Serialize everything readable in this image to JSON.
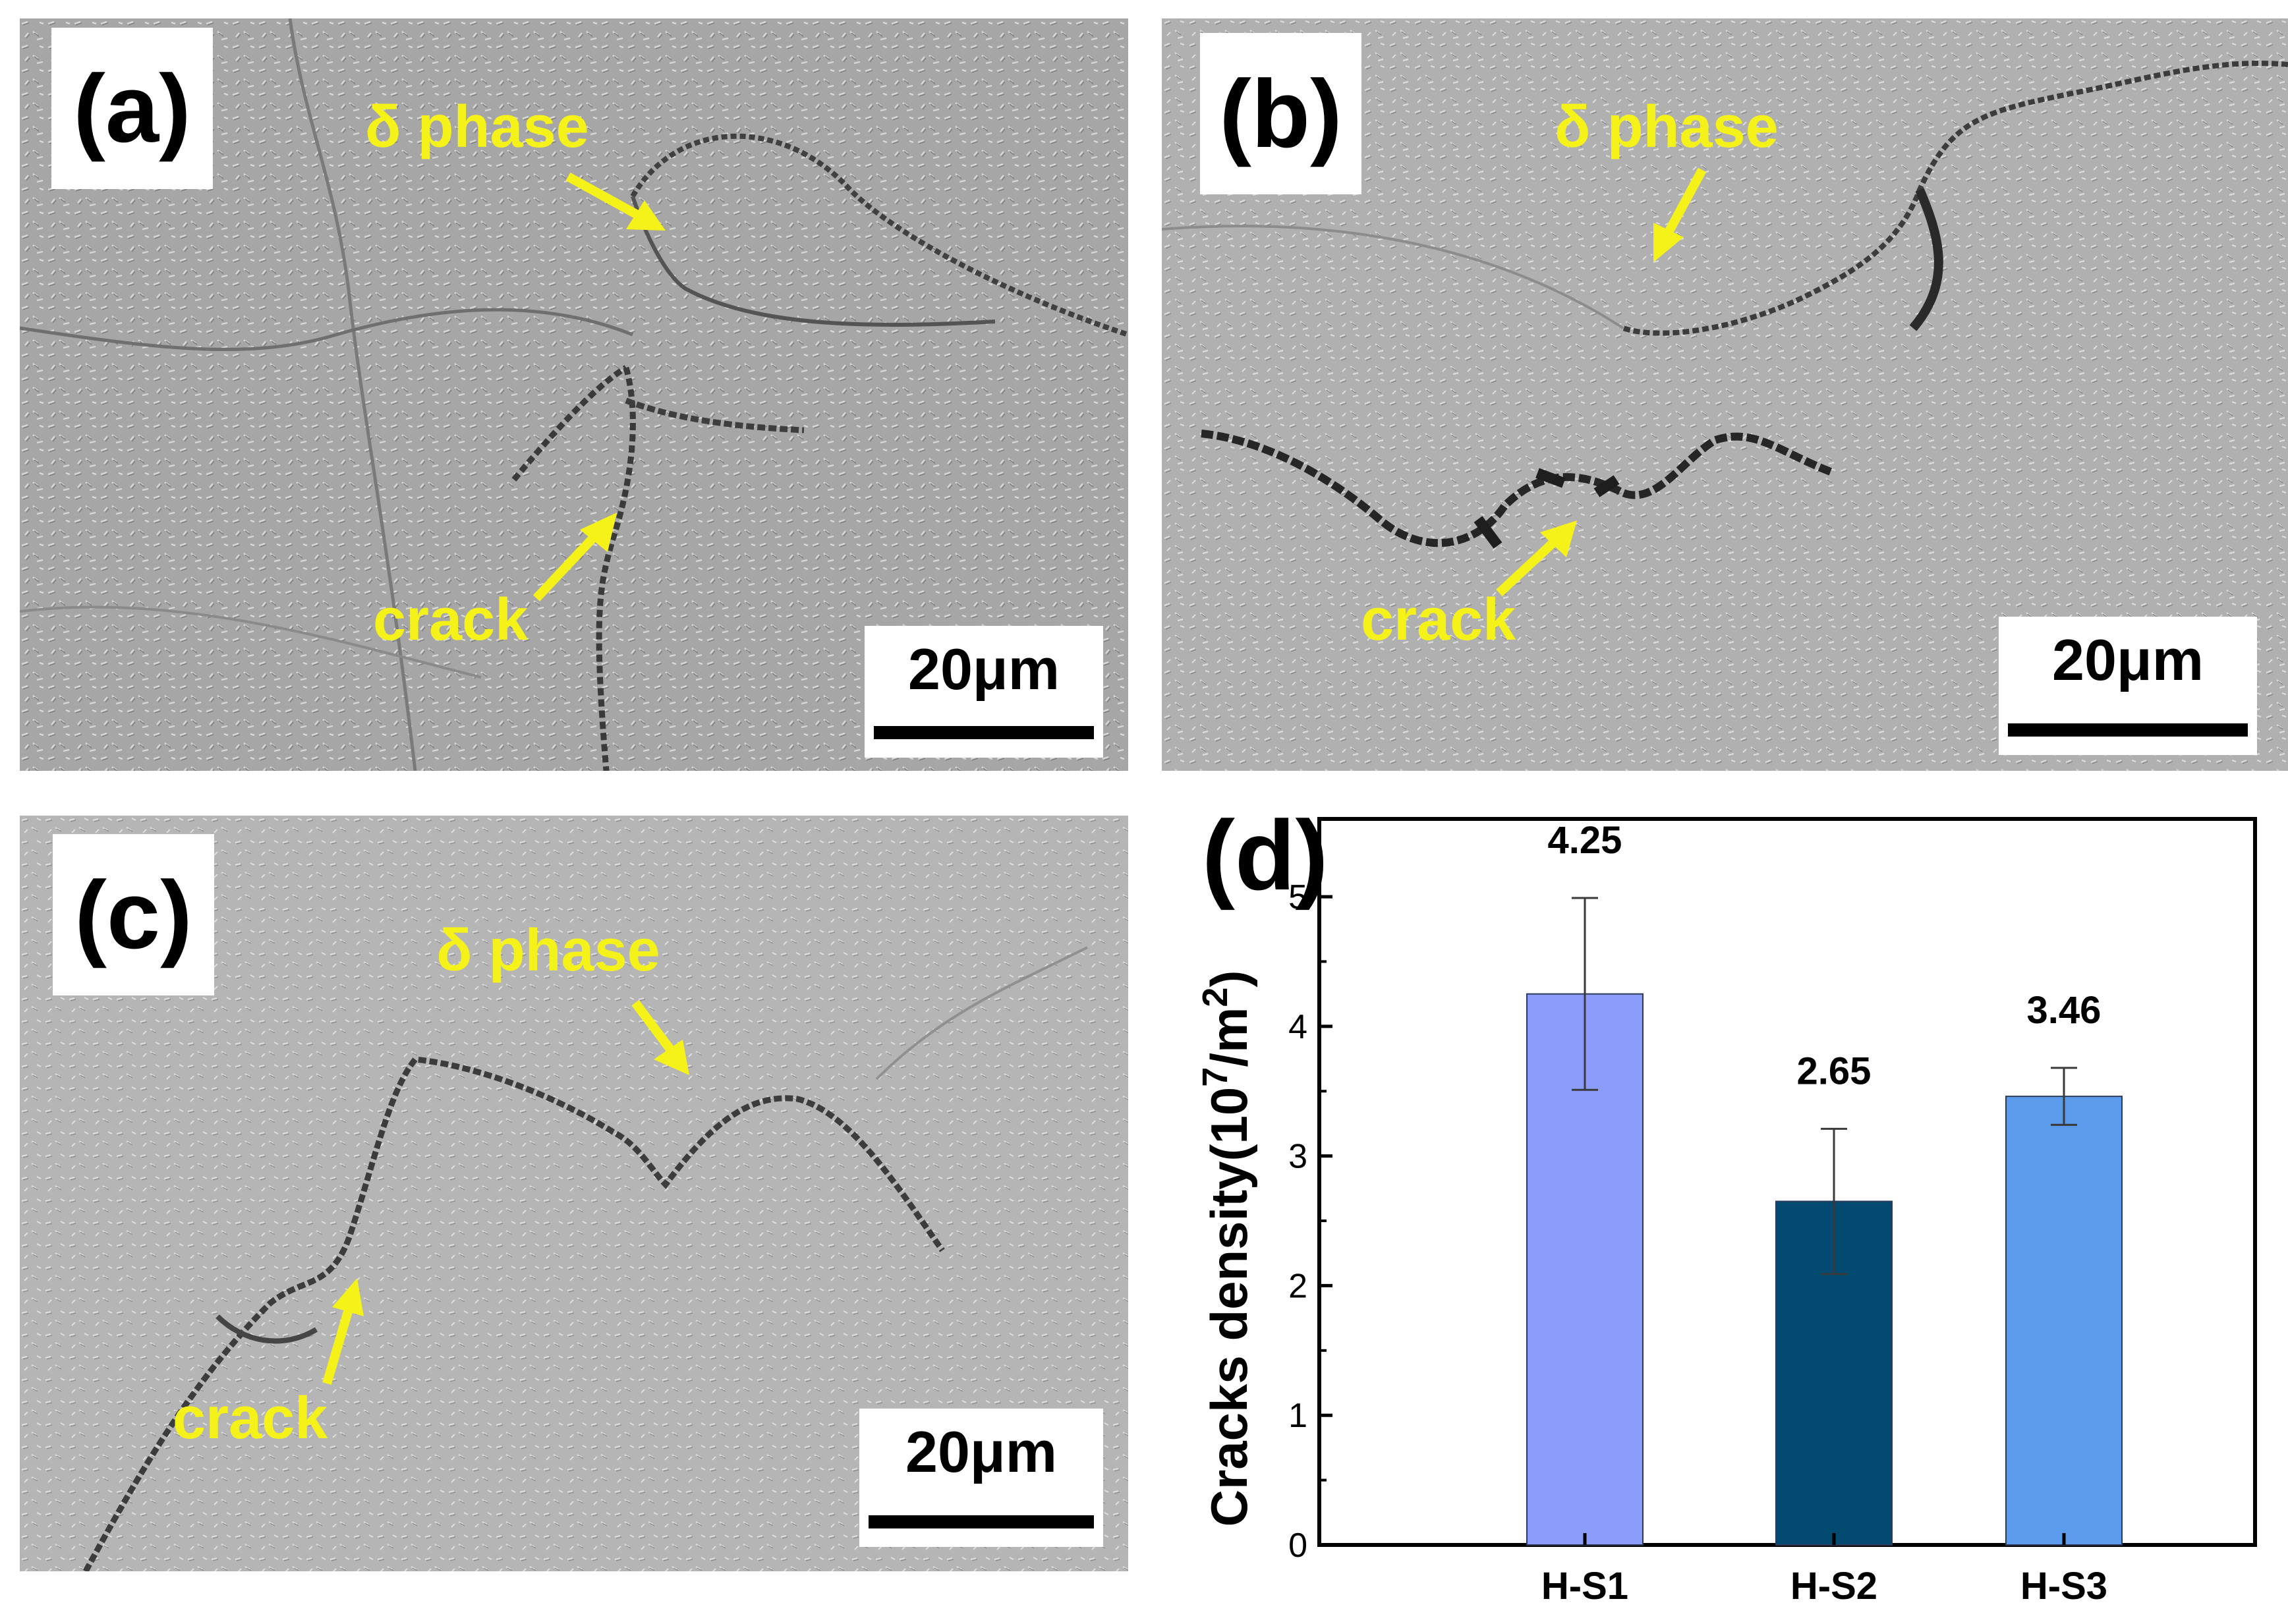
{
  "panels": {
    "a": {
      "label": "(a)",
      "phase_label": "δ phase",
      "crack_label": "crack",
      "scale_bar": "20μm"
    },
    "b": {
      "label": "(b)",
      "phase_label": "δ phase",
      "crack_label": "crack",
      "scale_bar": "20μm"
    },
    "c": {
      "label": "(c)",
      "phase_label": "δ phase",
      "crack_label": "crack",
      "scale_bar": "20μm"
    }
  },
  "colors": {
    "annotation": "#f5f21a",
    "micrograph_gray": "#a9a9a9",
    "bar_h_s1": "#8c9cfb",
    "bar_h_s2": "#024a70",
    "bar_h_s3": "#5a9bec"
  },
  "chart_data": {
    "type": "bar",
    "panel_label": "(d)",
    "categories": [
      "H-S1",
      "H-S2",
      "H-S3"
    ],
    "values": [
      4.25,
      2.65,
      3.46
    ],
    "error_upper": [
      4.99,
      3.21,
      3.68
    ],
    "error_lower": [
      3.51,
      2.09,
      3.24
    ],
    "value_labels": [
      "4.25",
      "2.65",
      "3.46"
    ],
    "ylabel_prefix": "Cracks density(10",
    "ylabel_exp1": "7",
    "ylabel_mid": "/m",
    "ylabel_exp2": "2",
    "ylabel_suffix": ")",
    "ylim": [
      0,
      5.6
    ],
    "yticks": [
      "0",
      "1",
      "2",
      "3",
      "4",
      "5"
    ],
    "grid": false
  }
}
